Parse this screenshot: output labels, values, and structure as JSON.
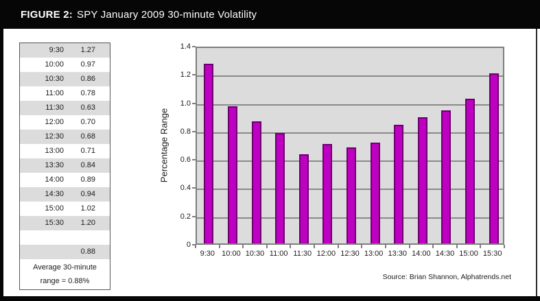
{
  "figure": {
    "label": "FIGURE 2:",
    "title": "SPY January 2009 30-minute Volatility"
  },
  "table": {
    "rows": [
      {
        "time": "9:30",
        "value": "1.27"
      },
      {
        "time": "10:00",
        "value": "0.97"
      },
      {
        "time": "10:30",
        "value": "0.86"
      },
      {
        "time": "11:00",
        "value": "0.78"
      },
      {
        "time": "11:30",
        "value": "0.63"
      },
      {
        "time": "12:00",
        "value": "0.70"
      },
      {
        "time": "12:30",
        "value": "0.68"
      },
      {
        "time": "13:00",
        "value": "0.71"
      },
      {
        "time": "13:30",
        "value": "0.84"
      },
      {
        "time": "14:00",
        "value": "0.89"
      },
      {
        "time": "14:30",
        "value": "0.94"
      },
      {
        "time": "15:00",
        "value": "1.02"
      },
      {
        "time": "15:30",
        "value": "1.20"
      },
      {
        "time": "",
        "value": ""
      },
      {
        "time": "",
        "value": "0.88"
      }
    ],
    "summary_line1": "Average 30-minute",
    "summary_line2": "range = 0.88%"
  },
  "chart_data": {
    "type": "bar",
    "categories": [
      "9:30",
      "10:00",
      "10:30",
      "11:00",
      "11:30",
      "12:00",
      "12:30",
      "13:00",
      "13:30",
      "14:00",
      "14:30",
      "15:00",
      "15:30"
    ],
    "values": [
      1.27,
      0.97,
      0.86,
      0.78,
      0.63,
      0.7,
      0.68,
      0.71,
      0.84,
      0.89,
      0.94,
      1.02,
      1.2
    ],
    "title": "SPY January 2009 30-minute Volatility",
    "xlabel": "",
    "ylabel": "Percentage Range",
    "ylim": [
      0,
      1.4
    ],
    "ytick_step": 0.2,
    "ytick_labels": [
      "0",
      "0.2",
      "0.4",
      "0.6",
      "0.8",
      "1.0",
      "1.2",
      "1.4"
    ],
    "grid": true,
    "legend": false,
    "bar_color": "#be00c0",
    "bar_border_color": "#6b006e",
    "plot_bg_color": "#dcdcdc",
    "grid_color": "#8a8a8a"
  },
  "source": "Source: Brian Shannon, Alphatrends.net"
}
